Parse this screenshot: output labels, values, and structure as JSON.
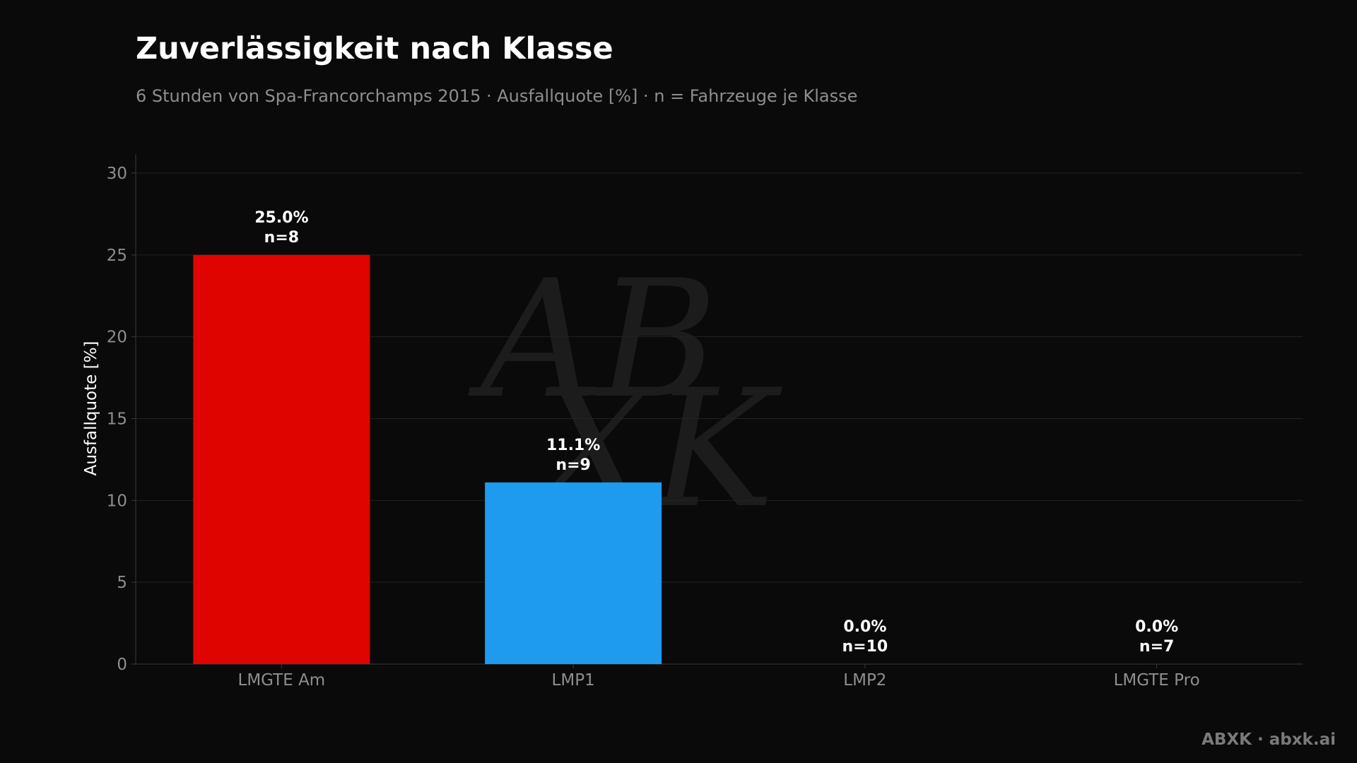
{
  "title": "Zuverlässigkeit nach Klasse",
  "subtitle": "6 Stunden von Spa-Francorchamps 2015 · Ausfallquote [%] · n = Fahrzeuge je Klasse",
  "footer": "ABXK · abxk.ai",
  "watermark": "ABXK",
  "colors": {
    "background": "#0a0a0a",
    "grid": "#222222",
    "axis": "#3a3a3a",
    "tick_text": "#8e8e8e"
  },
  "chart_data": {
    "type": "bar",
    "categories": [
      "LMGTE Am",
      "LMP1",
      "LMP2",
      "LMGTE Pro"
    ],
    "values": [
      25.0,
      11.1,
      0.0,
      0.0
    ],
    "counts": [
      8,
      9,
      10,
      7
    ],
    "value_labels": [
      "25.0%",
      "11.1%",
      "0.0%",
      "0.0%"
    ],
    "count_labels": [
      "n=8",
      "n=9",
      "n=10",
      "n=7"
    ],
    "bar_colors": [
      "#e00400",
      "#1e9bef",
      "#888888",
      "#888888"
    ],
    "ylabel": "Ausfallquote [%]",
    "xlabel": "",
    "ylim": [
      0,
      30
    ],
    "yticks": [
      0,
      5,
      10,
      15,
      20,
      25,
      30
    ],
    "grid": true
  }
}
